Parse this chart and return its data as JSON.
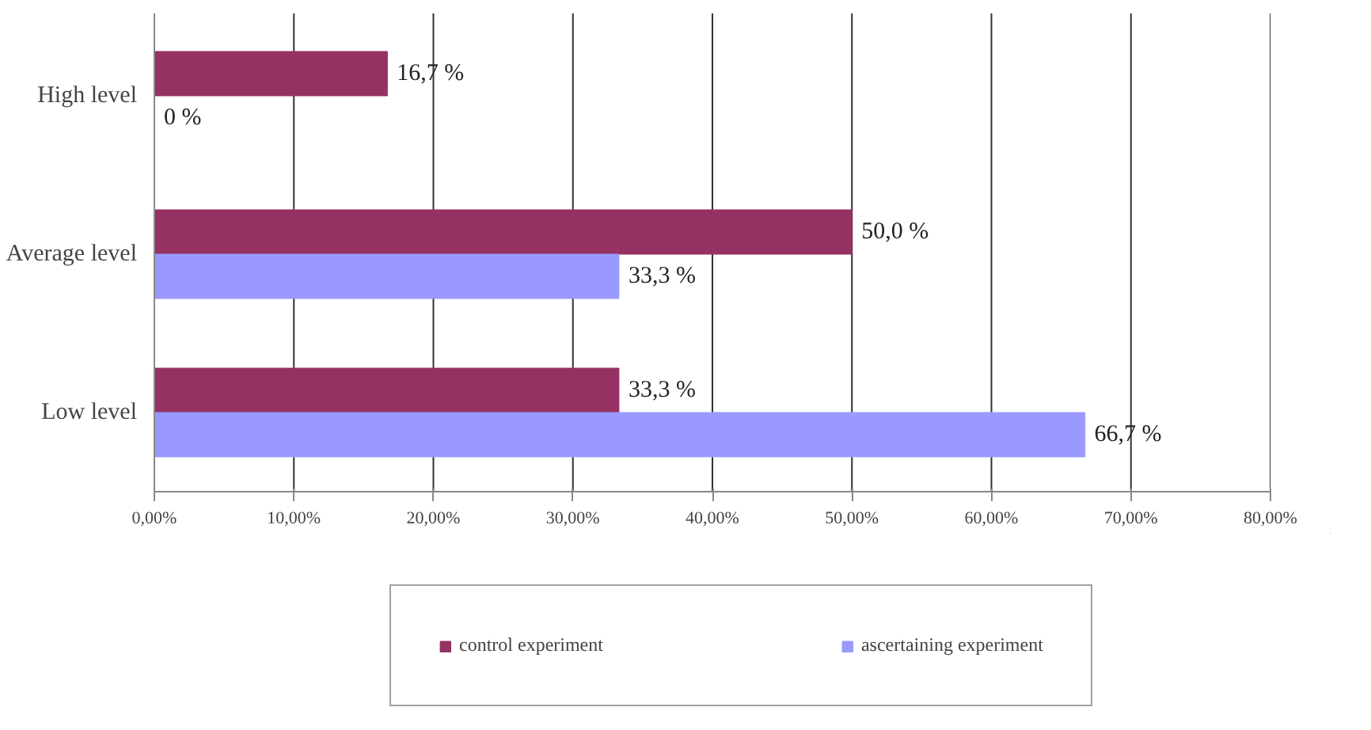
{
  "chart_data": {
    "type": "bar",
    "orientation": "horizontal",
    "categories": [
      "High level",
      "Average level",
      "Low level"
    ],
    "series": [
      {
        "name": "control experiment",
        "color": "#953163",
        "values": [
          16.7,
          50.0,
          33.3
        ],
        "value_labels": [
          "16,7 %",
          "50,0 %",
          "33,3 %"
        ]
      },
      {
        "name": "ascertaining experiment",
        "color": "#9999ff",
        "values": [
          0,
          33.3,
          66.7
        ],
        "value_labels": [
          "0 %",
          "33,3 %",
          "66,7 %"
        ]
      }
    ],
    "xlim": [
      0,
      80
    ],
    "xticks": [
      {
        "value": 0,
        "label": "0,00%"
      },
      {
        "value": 10,
        "label": "10,00%"
      },
      {
        "value": 20,
        "label": "20,00%"
      },
      {
        "value": 30,
        "label": "30,00%"
      },
      {
        "value": 40,
        "label": "40,00%"
      },
      {
        "value": 50,
        "label": "50,00%"
      },
      {
        "value": 60,
        "label": "60,00%"
      },
      {
        "value": 70,
        "label": "70,00%"
      },
      {
        "value": 80,
        "label": "80,00%"
      }
    ],
    "grid": "x",
    "legend": "bottom"
  }
}
